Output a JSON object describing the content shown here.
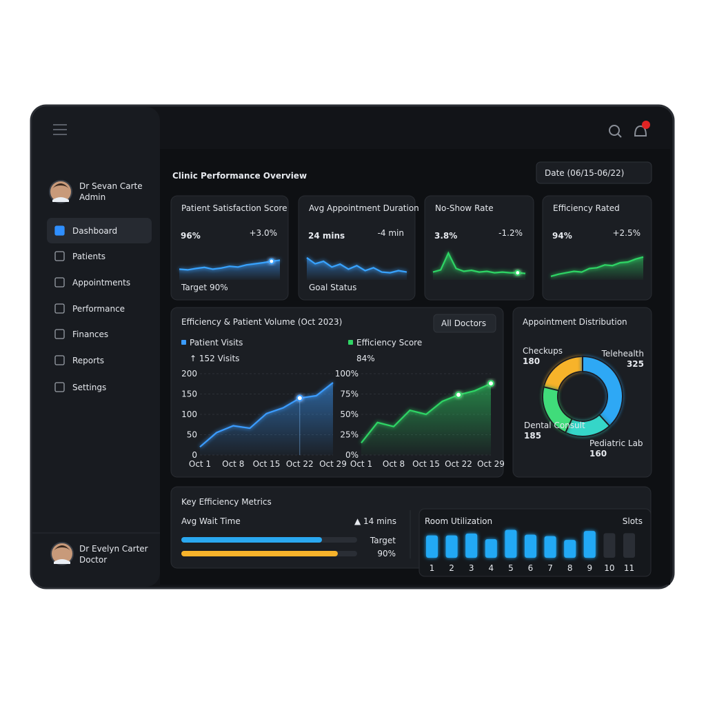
{
  "sidebar": {
    "profile": {
      "name": "Dr Sevan Carte",
      "role": "Admin"
    },
    "nav": [
      "Dashboard",
      "Patients",
      "Appointments",
      "Performance",
      "Finances",
      "Reports",
      "Settings"
    ],
    "footer_profile": {
      "name": "Dr Evelyn Carter",
      "role": "Doctor"
    }
  },
  "header": {
    "title": "Clinic Performance Overview",
    "date_filter": "Date (06/15-06/22)"
  },
  "kpis": [
    {
      "label": "Patient Satisfaction Score",
      "value": "96%",
      "badge": "+3.0%",
      "footnote": "Target 90%",
      "color": "#38a3ff",
      "ylim": [
        0,
        100
      ],
      "trend": [
        30,
        28,
        32,
        35,
        30,
        33,
        38,
        36,
        42,
        45,
        48,
        52,
        55
      ]
    },
    {
      "label": "Avg Appointment Duration",
      "value": "24 mins",
      "badge": "-4 min",
      "footnote": "Goal Status",
      "color": "#38a3ff",
      "ylim": [
        0,
        100
      ],
      "trend": [
        62,
        45,
        52,
        36,
        44,
        30,
        40,
        26,
        34,
        22,
        20,
        26,
        22
      ]
    },
    {
      "label": "No-Show Rate",
      "value": "3.8%",
      "badge": "-1.2%",
      "color": "#2fd565",
      "ylim": [
        0,
        100
      ],
      "trend": [
        22,
        28,
        75,
        32,
        24,
        27,
        22,
        24,
        20,
        22,
        20,
        20,
        18
      ]
    },
    {
      "label": "Efficiency Rated",
      "value": "94%",
      "badge": "+2.5%",
      "color": "#2fd565",
      "ylim": [
        0,
        100
      ],
      "trend": [
        10,
        16,
        20,
        24,
        22,
        32,
        34,
        42,
        40,
        48,
        50,
        58,
        64
      ]
    }
  ],
  "volume_panel": {
    "title": "Efficiency & Patient Volume (Oct 2023)",
    "filter": "All Doctors",
    "charts": [
      {
        "type": "area",
        "legend": "Patient Visits",
        "headline": "↑ 152 Visits",
        "color": "#3b9cff",
        "categories": [
          "Oct 1",
          null,
          "Oct 8",
          null,
          "Oct 15",
          null,
          "Oct 22",
          null,
          "Oct 29"
        ],
        "values": [
          20,
          55,
          72,
          66,
          102,
          116,
          140,
          146,
          178
        ],
        "ylim": [
          0,
          200
        ],
        "yticks": [
          0,
          50,
          100,
          150,
          200
        ]
      },
      {
        "type": "area",
        "legend": "Efficiency Score",
        "headline": "84%",
        "color": "#2fd565",
        "categories": [
          "Oct 1",
          null,
          "Oct 8",
          null,
          "Oct 15",
          null,
          "Oct 22",
          null,
          "Oct 29"
        ],
        "values": [
          15,
          40,
          35,
          55,
          50,
          66,
          74,
          79,
          88
        ],
        "ylim": [
          0,
          100
        ],
        "yticks": [
          {
            "value": 0,
            "label": "0%"
          },
          {
            "value": 25,
            "label": "25%"
          },
          {
            "value": 50,
            "label": "50%"
          },
          {
            "value": 75,
            "label": "75%"
          },
          {
            "value": 100,
            "label": "100%"
          }
        ]
      }
    ]
  },
  "distribution": {
    "type": "donut",
    "title": "Appointment Distribution",
    "categories": [
      "Checkups",
      "Telehealth",
      "Pediatric Lab",
      "Dental Consult"
    ],
    "values": [
      180,
      325,
      160,
      185
    ],
    "colors": [
      "#f7b32b",
      "#2fa8f5",
      "#35d6c8",
      "#3fdc7a"
    ]
  },
  "efficiency": {
    "title": "Key Efficiency Metrics",
    "metric": "Avg Wait Time",
    "change": "▲ 14 mins",
    "bars": {
      "values": [
        80,
        89
      ],
      "colors": [
        "#2aa8f0",
        "#f7b32b"
      ],
      "xlim": [
        0,
        100
      ]
    },
    "target_text": "Target",
    "target_value": "90%"
  },
  "utilization": {
    "type": "bar",
    "title": "Room Utilization",
    "unit": "Slots",
    "categories": [
      "1",
      "2",
      "3",
      "4",
      "5",
      "6",
      "7",
      "8",
      "9",
      "10",
      "11"
    ],
    "values": [
      60,
      60,
      65,
      50,
      75,
      62,
      58,
      48,
      72,
      66,
      66
    ],
    "colors": [
      "#22a9f5",
      "#22a9f5",
      "#22a9f5",
      "#22a9f5",
      "#22a9f5",
      "#22a9f5",
      "#22a9f5",
      "#22a9f5",
      "#22a9f5",
      "#2a2e35",
      "#2a2e35"
    ],
    "ylim": [
      0,
      100
    ]
  }
}
